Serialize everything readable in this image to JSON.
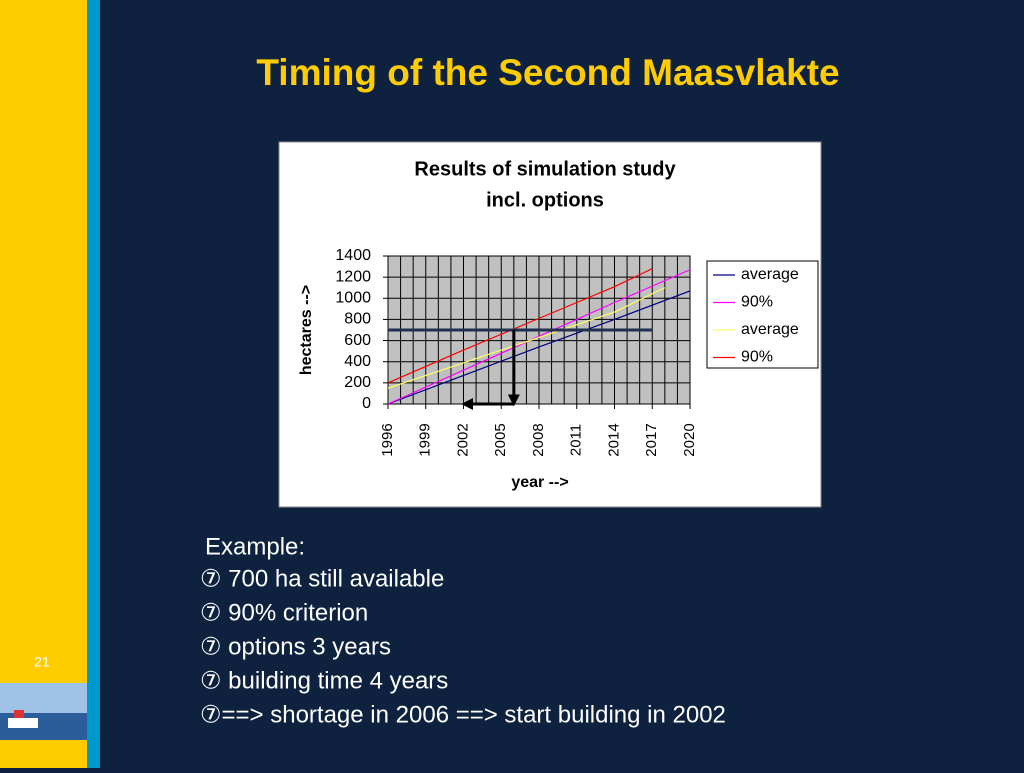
{
  "slide_title": "Timing of the Second Maasvlakte",
  "page_number": "21",
  "example": {
    "heading": "Example:",
    "items": [
      "⑦ 700 ha still available",
      "⑦ 90% criterion",
      "⑦ options 3 years",
      "⑦ building time 4 years",
      "⑦==> shortage in 2006 ==> start building in 2002"
    ]
  },
  "chart_data": {
    "type": "line",
    "title": [
      "Results of simulation study",
      "incl. options"
    ],
    "x_label": "year -->",
    "y_label": "hectares -->",
    "xlim": [
      1996,
      2020
    ],
    "xticks": [
      1996,
      1999,
      2002,
      2005,
      2008,
      2011,
      2014,
      2017,
      2020
    ],
    "xgrid": [
      1996,
      1997,
      1998,
      1999,
      2000,
      2001,
      2002,
      2003,
      2004,
      2005,
      2006,
      2007,
      2008,
      2009,
      2010,
      2011,
      2012,
      2013,
      2014,
      2015,
      2016,
      2017,
      2018,
      2019,
      2020
    ],
    "ylim": [
      0,
      1400
    ],
    "yticks": [
      0,
      200,
      400,
      600,
      800,
      1000,
      1200,
      1400
    ],
    "grid": true,
    "legend": "right",
    "series": [
      {
        "name": "average",
        "color": "#000080",
        "x": [
          1996,
          2002,
          2008,
          2014,
          2020
        ],
        "values": [
          0,
          270,
          540,
          800,
          1070
        ]
      },
      {
        "name": "90%",
        "color": "#ff00ff",
        "x": [
          1996,
          2002,
          2008,
          2014,
          2020
        ],
        "values": [
          0,
          320,
          640,
          960,
          1270
        ]
      },
      {
        "name": "average",
        "color": "#ffff66",
        "x": [
          1996,
          2002,
          2008,
          2014,
          2018
        ],
        "values": [
          150,
          390,
          630,
          870,
          1100
        ]
      },
      {
        "name": "90%",
        "color": "#ff0000",
        "x": [
          1996,
          2002,
          2008,
          2014,
          2017
        ],
        "values": [
          200,
          510,
          810,
          1110,
          1280
        ]
      }
    ],
    "reference_line": {
      "x": [
        1996,
        2017
      ],
      "y": 700
    },
    "arrows": [
      {
        "x": [
          2006,
          2006
        ],
        "y": [
          700,
          0
        ]
      },
      {
        "x": [
          2006,
          2002
        ],
        "y": [
          0,
          0
        ]
      }
    ]
  }
}
